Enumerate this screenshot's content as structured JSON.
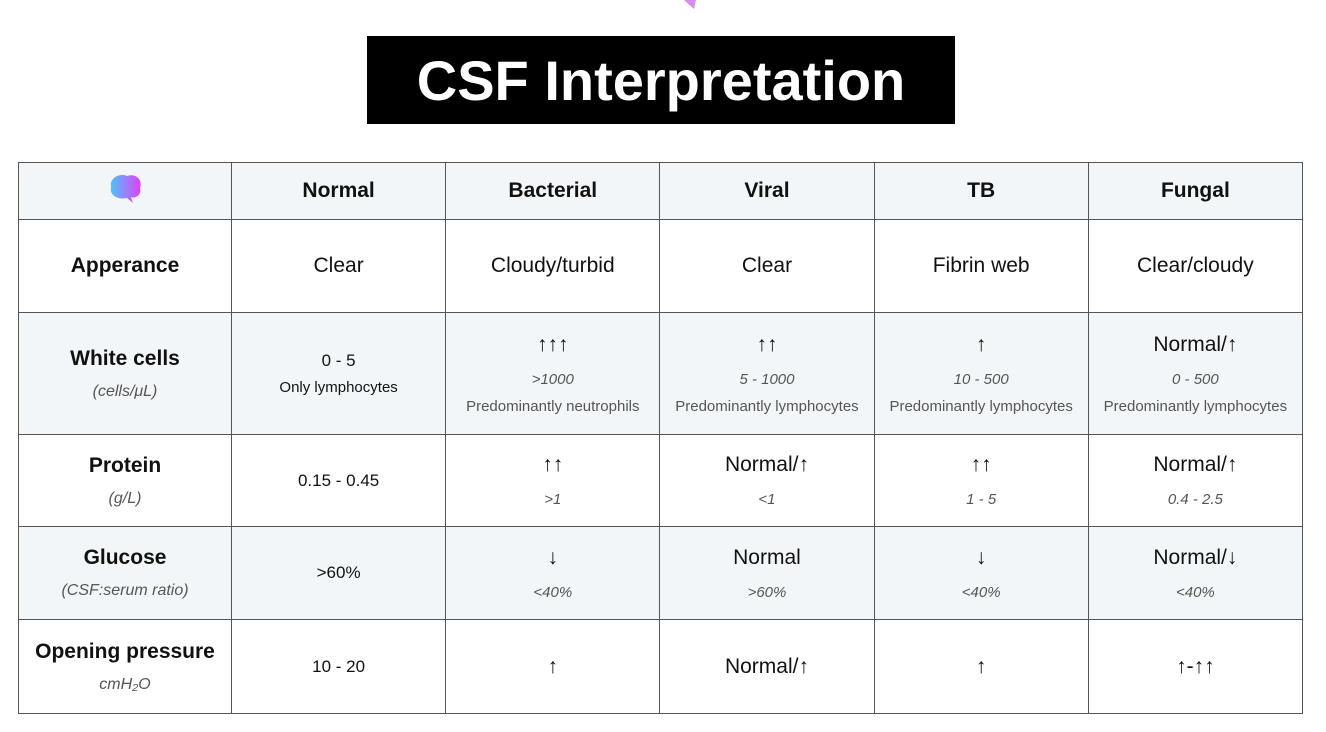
{
  "title": "CSF Interpretation",
  "table": {
    "header": [
      "Normal",
      "Bacterial",
      "Viral",
      "TB",
      "Fungal"
    ],
    "rows": [
      {
        "label": "Apperance",
        "cells": [
          {
            "main": "Clear"
          },
          {
            "main": "Cloudy/turbid"
          },
          {
            "main": "Clear"
          },
          {
            "main": "Fibrin web"
          },
          {
            "main": "Clear/cloudy"
          }
        ]
      },
      {
        "label": "White cells",
        "unit": "(cells/μL)",
        "cells": [
          {
            "main": "0 - 5",
            "note": "Only lymphocytes"
          },
          {
            "main": "↑↑↑",
            "sub": ">1000",
            "note": "Predominantly neutrophils"
          },
          {
            "main": "↑↑",
            "sub": "5 - 1000",
            "note": "Predominantly lymphocytes"
          },
          {
            "main": "↑",
            "sub": "10 - 500",
            "note": "Predominantly lymphocytes"
          },
          {
            "main": "Normal/↑",
            "sub": "0 - 500",
            "note": "Predominantly lymphocytes"
          }
        ]
      },
      {
        "label": "Protein",
        "unit": "(g/L)",
        "cells": [
          {
            "main": "0.15 - 0.45"
          },
          {
            "main": "↑↑",
            "sub": ">1"
          },
          {
            "main": "Normal/↑",
            "sub": "<1"
          },
          {
            "main": "↑↑",
            "sub": "1 - 5"
          },
          {
            "main": "Normal/↑",
            "sub": "0.4 - 2.5"
          }
        ]
      },
      {
        "label": "Glucose",
        "unit": "(CSF:serum ratio)",
        "cells": [
          {
            "main": ">60%"
          },
          {
            "main": "↓",
            "sub": "<40%"
          },
          {
            "main": "Normal",
            "sub": ">60%"
          },
          {
            "main": "↓",
            "sub": "<40%"
          },
          {
            "main": "Normal/↓",
            "sub": "<40%"
          }
        ]
      },
      {
        "label": "Opening pressure",
        "unit": "cmH₂O",
        "cells": [
          {
            "main": "10 - 20"
          },
          {
            "main": "↑"
          },
          {
            "main": "Normal/↑"
          },
          {
            "main": "↑"
          },
          {
            "main": "↑-↑↑"
          }
        ]
      }
    ]
  }
}
